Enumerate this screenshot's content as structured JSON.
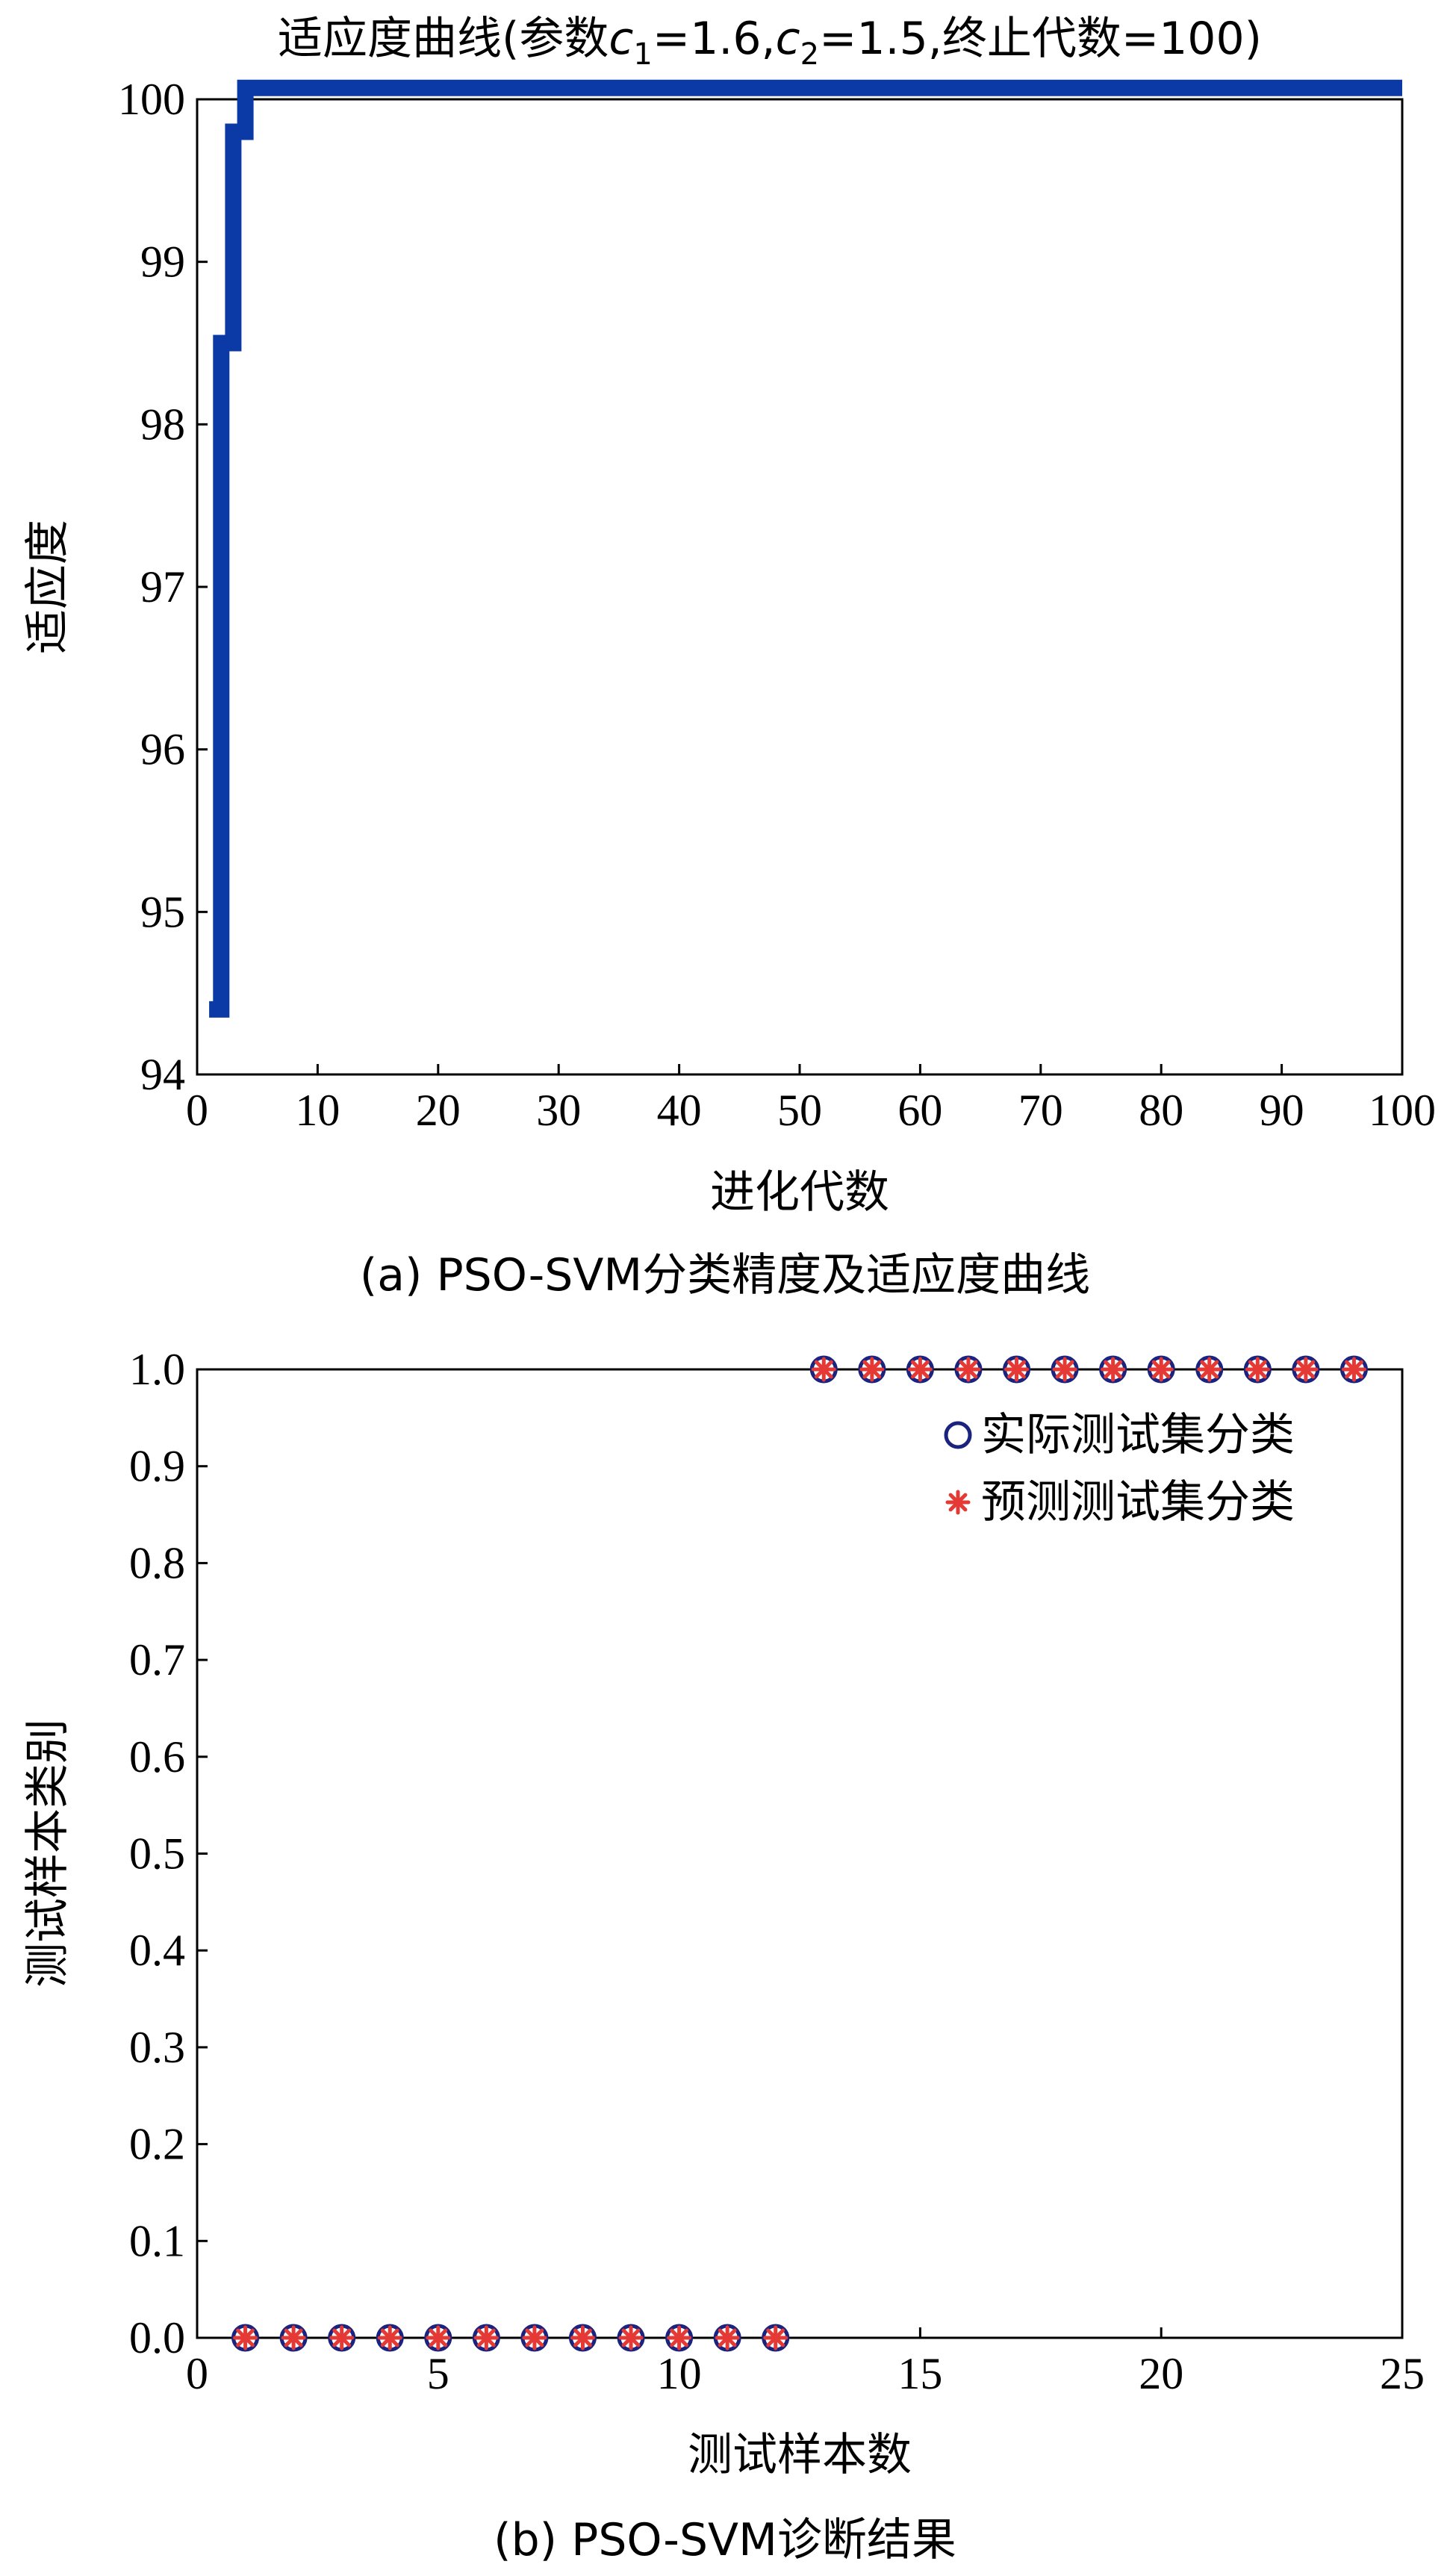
{
  "chart_data": [
    {
      "type": "line",
      "title_prefix": "适应度曲线(参数",
      "title_c1_base": "c",
      "title_c1_sub": "1",
      "title_c1_value": "=1.6,",
      "title_c2_base": "c",
      "title_c2_sub": "2",
      "title_c2_value": "=1.5,终止代数=100)",
      "xlabel": "进化代数",
      "ylabel": "适应度",
      "caption": "(a) PSO-SVM分类精度及适应度曲线",
      "xlim": [
        0,
        100
      ],
      "ylim": [
        94,
        100
      ],
      "xticks": [
        0,
        10,
        20,
        30,
        40,
        50,
        60,
        70,
        80,
        90,
        100
      ],
      "yticks": [
        94,
        95,
        96,
        97,
        98,
        99,
        100
      ],
      "series": [
        {
          "color": "#0b3aa6",
          "x": [
            1,
            2,
            2,
            3,
            3,
            4,
            4,
            100
          ],
          "y": [
            94.4,
            94.4,
            98.5,
            98.5,
            99.8,
            99.8,
            100.07,
            100.07
          ]
        }
      ]
    },
    {
      "type": "scatter",
      "xlabel": "测试样本数",
      "ylabel": "测试样本类别",
      "caption": "(b) PSO-SVM诊断结果",
      "xlim": [
        0,
        25
      ],
      "ylim": [
        0,
        1
      ],
      "xticks": [
        0,
        5,
        10,
        15,
        20,
        25
      ],
      "yticks": [
        "0.0",
        "0.1",
        "0.2",
        "0.3",
        "0.4",
        "0.5",
        "0.6",
        "0.7",
        "0.8",
        "0.9",
        "1.0"
      ],
      "legend_position": "top-right",
      "series": [
        {
          "name": "实际测试集分类",
          "marker": "circle",
          "color": "#1a237e",
          "x": [
            1,
            2,
            3,
            4,
            5,
            6,
            7,
            8,
            9,
            10,
            11,
            12,
            13,
            14,
            15,
            16,
            17,
            18,
            19,
            20,
            21,
            22,
            23,
            24
          ],
          "y": [
            0,
            0,
            0,
            0,
            0,
            0,
            0,
            0,
            0,
            0,
            0,
            0,
            1,
            1,
            1,
            1,
            1,
            1,
            1,
            1,
            1,
            1,
            1,
            1
          ]
        },
        {
          "name": "预测测试集分类",
          "marker": "asterisk",
          "color": "#e53935",
          "x": [
            1,
            2,
            3,
            4,
            5,
            6,
            7,
            8,
            9,
            10,
            11,
            12,
            13,
            14,
            15,
            16,
            17,
            18,
            19,
            20,
            21,
            22,
            23,
            24
          ],
          "y": [
            0,
            0,
            0,
            0,
            0,
            0,
            0,
            0,
            0,
            0,
            0,
            0,
            1,
            1,
            1,
            1,
            1,
            1,
            1,
            1,
            1,
            1,
            1,
            1
          ]
        }
      ]
    }
  ]
}
